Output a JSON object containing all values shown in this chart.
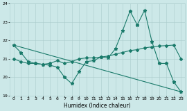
{
  "xlabel": "Humidex (Indice chaleur)",
  "xlim": [
    -0.5,
    23.5
  ],
  "ylim": [
    19,
    24
  ],
  "yticks": [
    19,
    20,
    21,
    22,
    23,
    24
  ],
  "xticks": [
    0,
    1,
    2,
    3,
    4,
    5,
    6,
    7,
    8,
    9,
    10,
    11,
    12,
    13,
    14,
    15,
    16,
    17,
    18,
    19,
    20,
    21,
    22,
    23
  ],
  "bg_color": "#cce8e8",
  "line_color": "#1a7a6a",
  "series1_x": [
    0,
    1,
    2,
    3,
    4,
    5,
    6,
    7,
    8,
    9,
    10,
    11,
    12,
    13,
    14,
    15,
    16,
    17,
    18,
    19,
    20,
    21,
    22,
    23
  ],
  "series1_y": [
    21.75,
    21.35,
    20.85,
    20.75,
    20.7,
    20.65,
    20.55,
    20.0,
    19.65,
    20.3,
    20.85,
    20.9,
    21.1,
    21.05,
    21.55,
    22.55,
    23.6,
    22.85,
    23.65,
    21.95,
    20.75,
    20.75,
    19.75,
    19.2
  ],
  "series2_x": [
    0,
    1,
    2,
    3,
    4,
    5,
    6,
    7,
    8,
    9,
    10,
    11,
    12,
    13,
    14,
    15,
    16,
    17,
    18,
    19,
    20,
    21,
    22,
    23
  ],
  "series2_y": [
    21.0,
    20.85,
    20.75,
    20.75,
    20.7,
    20.75,
    20.9,
    20.75,
    20.85,
    21.0,
    21.05,
    21.05,
    21.1,
    21.15,
    21.25,
    21.35,
    21.45,
    21.5,
    21.6,
    21.65,
    21.7,
    21.72,
    21.75,
    21.0
  ],
  "series3_x": [
    0,
    23
  ],
  "series3_y": [
    21.75,
    19.2
  ]
}
